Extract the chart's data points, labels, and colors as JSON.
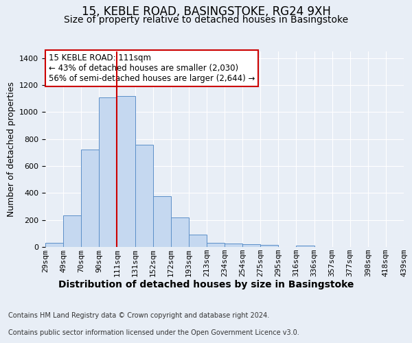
{
  "title": "15, KEBLE ROAD, BASINGSTOKE, RG24 9XH",
  "subtitle": "Size of property relative to detached houses in Basingstoke",
  "xlabel": "Distribution of detached houses by size in Basingstoke",
  "ylabel": "Number of detached properties",
  "footnote1": "Contains HM Land Registry data © Crown copyright and database right 2024.",
  "footnote2": "Contains public sector information licensed under the Open Government Licence v3.0.",
  "bar_values": [
    30,
    235,
    725,
    1110,
    1120,
    760,
    375,
    220,
    90,
    30,
    25,
    20,
    15,
    0,
    10,
    0,
    0,
    0,
    0,
    0
  ],
  "x_labels": [
    "29sqm",
    "49sqm",
    "70sqm",
    "90sqm",
    "111sqm",
    "131sqm",
    "152sqm",
    "172sqm",
    "193sqm",
    "213sqm",
    "234sqm",
    "254sqm",
    "275sqm",
    "295sqm",
    "316sqm",
    "336sqm",
    "357sqm",
    "377sqm",
    "398sqm",
    "418sqm",
    "439sqm"
  ],
  "bar_color": "#c5d8f0",
  "bar_edge_color": "#5b8fc8",
  "vline_color": "#cc0000",
  "vline_x": 3.5,
  "annotation_text": "15 KEBLE ROAD: 111sqm\n← 43% of detached houses are smaller (2,030)\n56% of semi-detached houses are larger (2,644) →",
  "annotation_box_color": "#ffffff",
  "annotation_box_edge": "#cc0000",
  "ylim": [
    0,
    1450
  ],
  "yticks": [
    0,
    200,
    400,
    600,
    800,
    1000,
    1200,
    1400
  ],
  "background_color": "#e8eef6",
  "grid_color": "#ffffff",
  "title_fontsize": 12,
  "subtitle_fontsize": 10,
  "xlabel_fontsize": 10,
  "ylabel_fontsize": 9,
  "tick_fontsize": 8,
  "annotation_fontsize": 8.5,
  "footnote_fontsize": 7
}
